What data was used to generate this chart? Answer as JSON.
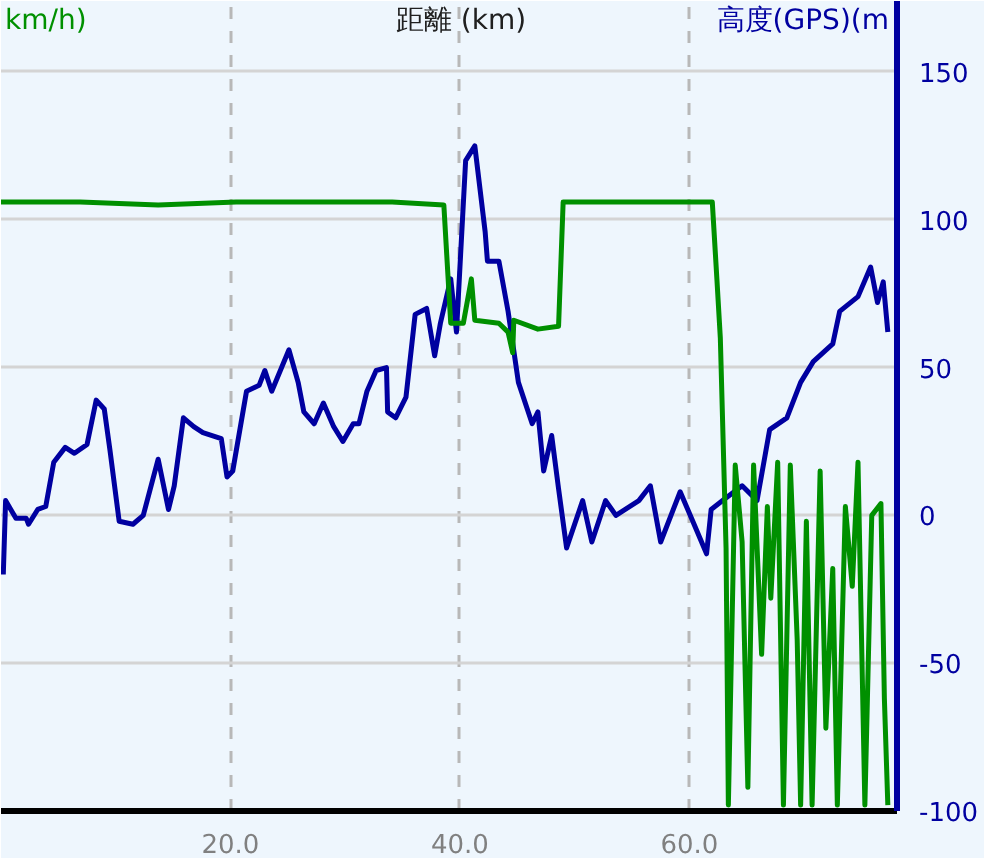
{
  "chart_data": {
    "type": "line",
    "xlabel": "距離 (km)",
    "ylabel": "高度(GPS)(m",
    "annotations": [
      "km/h)"
    ],
    "xlim": [
      0,
      78.1
    ],
    "ylim": [
      -100,
      174
    ],
    "xticks": [
      {
        "value": 20,
        "label": "20.0"
      },
      {
        "value": 40,
        "label": "40.0"
      },
      {
        "value": 60,
        "label": "60.0"
      }
    ],
    "yticks": [
      -100,
      -50,
      0,
      50,
      100,
      150
    ],
    "grid": true,
    "line_style": "solid",
    "marker": "none",
    "series": [
      {
        "color": "#0000a0",
        "x": [
          0.2,
          0.4,
          1.3,
          2.2,
          2.4,
          3.2,
          3.9,
          4.6,
          5.6,
          6.4,
          7.5,
          8.3,
          9.0,
          9.5,
          10.3,
          11.5,
          12.4,
          13.7,
          14.6,
          15.1,
          15.9,
          16.8,
          17.6,
          19.2,
          19.7,
          20.2,
          21.4,
          22.5,
          23.0,
          23.6,
          25.1,
          25.9,
          26.4,
          27.3,
          28.1,
          29.0,
          29.8,
          30.7,
          31.2,
          31.9,
          32.7,
          33.6,
          33.7,
          34.4,
          35.3,
          36.1,
          37.1,
          37.8,
          38.3,
          39.2,
          39.7,
          40.5,
          41.3,
          42.2,
          42.4,
          43.4,
          44.2,
          45.1,
          46.3,
          46.8,
          47.3,
          48.0,
          48.6,
          49.3,
          50.7,
          51.5,
          52.7,
          53.6,
          55.6,
          56.6,
          57.5,
          59.2,
          60.3,
          61.5,
          61.9,
          62.9,
          64.6,
          65.9,
          67.0,
          68.5,
          69.7,
          70.8,
          72.5,
          73.1,
          74.7,
          75.8,
          76.4,
          76.9,
          77.3
        ],
        "values": [
          -20,
          5,
          -1,
          -1,
          -3,
          2,
          3,
          18,
          23,
          21,
          24,
          39,
          36,
          22,
          -2,
          -3,
          0,
          19,
          2,
          10,
          33,
          30,
          28,
          26,
          13,
          15,
          42,
          44,
          49,
          42,
          56,
          45,
          35,
          31,
          38,
          30,
          25,
          31,
          31,
          42,
          49,
          50,
          35,
          33,
          40,
          68,
          70,
          54,
          65,
          80,
          62,
          120,
          125,
          96,
          86,
          86,
          69,
          45,
          31,
          35,
          15,
          27,
          9,
          -11,
          5,
          -9,
          5,
          0,
          5,
          10,
          -9,
          8,
          -2,
          -13,
          2,
          5,
          10,
          5,
          29,
          33,
          45,
          52,
          58,
          69,
          74,
          84,
          72,
          79,
          62
        ]
      },
      {
        "color": "#009000",
        "x": [
          0,
          6.9,
          13.7,
          20.5,
          27.3,
          34.1,
          38.6,
          39.2,
          40.3,
          41.0,
          41.3,
          43.4,
          44.2,
          44.6,
          44.7,
          46.8,
          48.6,
          49.0,
          51.0,
          57.8,
          62.0,
          62.4,
          62.7,
          63.2,
          63.4,
          64.0,
          64.6,
          65.1,
          65.6,
          66.3,
          66.8,
          67.1,
          67.7,
          68.2,
          68.8,
          69.4,
          69.7,
          70.2,
          70.7,
          71.4,
          71.9,
          72.5,
          72.9,
          73.6,
          74.2,
          74.7,
          75.3,
          75.9,
          76.7,
          77.0,
          77.3
        ],
        "values": [
          106,
          106,
          105,
          106,
          106,
          106,
          105,
          65,
          65,
          80,
          66,
          65,
          62,
          55,
          66,
          63,
          64,
          106,
          106,
          106,
          106,
          80,
          60,
          -11,
          -98,
          17,
          -9,
          -92,
          17,
          -47,
          3,
          -28,
          18,
          -98,
          17,
          -42,
          -98,
          -2,
          -98,
          15,
          -72,
          -18,
          -98,
          3,
          -24,
          18,
          -98,
          0,
          4,
          -62,
          -98
        ]
      }
    ]
  }
}
